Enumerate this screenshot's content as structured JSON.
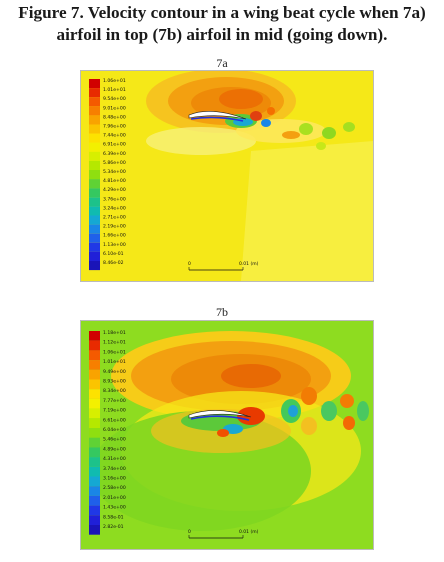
{
  "caption": {
    "line1": "Figure 7. Velocity contour in a wing beat cycle when 7a)",
    "line2": "airfoil in top (7b) airfoil in mid (going down)."
  },
  "panels": [
    {
      "id": "7a",
      "label": "7a",
      "scale_zero": "0",
      "scale_end": "0.01 (m)",
      "legend_values": [
        "1.06e+01",
        "1.01e+01",
        "9.54e+00",
        "9.01e+00",
        "8.48e+00",
        "7.96e+00",
        "7.44e+00",
        "6.91e+00",
        "6.39e+00",
        "5.86e+00",
        "5.34e+00",
        "4.81e+00",
        "4.29e+00",
        "3.76e+00",
        "3.24e+00",
        "2.71e+00",
        "2.19e+00",
        "1.66e+00",
        "1.13e+00",
        "6.10e-01",
        "8.46e-02"
      ]
    },
    {
      "id": "7b",
      "label": "7b",
      "scale_zero": "0",
      "scale_end": "0.01 (m)",
      "legend_values": [
        "1.18e+01",
        "1.12e+01",
        "1.06e+01",
        "1.01e+01",
        "9.49e+00",
        "8.93e+00",
        "8.34e+00",
        "7.77e+00",
        "7.19e+00",
        "6.61e+00",
        "6.04e+00",
        "5.46e+00",
        "4.89e+00",
        "4.31e+00",
        "3.74e+00",
        "3.16e+00",
        "2.58e+00",
        "2.01e+00",
        "1.43e+00",
        "8.58e-01",
        "2.82e-01"
      ]
    }
  ],
  "colormap": [
    "#d10000",
    "#e82a00",
    "#f45a00",
    "#f77f00",
    "#f9a300",
    "#fbc400",
    "#fde200",
    "#f3f000",
    "#d7ef00",
    "#b5e800",
    "#8fdf10",
    "#5fd235",
    "#35c860",
    "#1dc28a",
    "#10bbb0",
    "#15a8d3",
    "#1a86e6",
    "#1f60ea",
    "#2038e6",
    "#2020d8",
    "#1a14b8"
  ]
}
